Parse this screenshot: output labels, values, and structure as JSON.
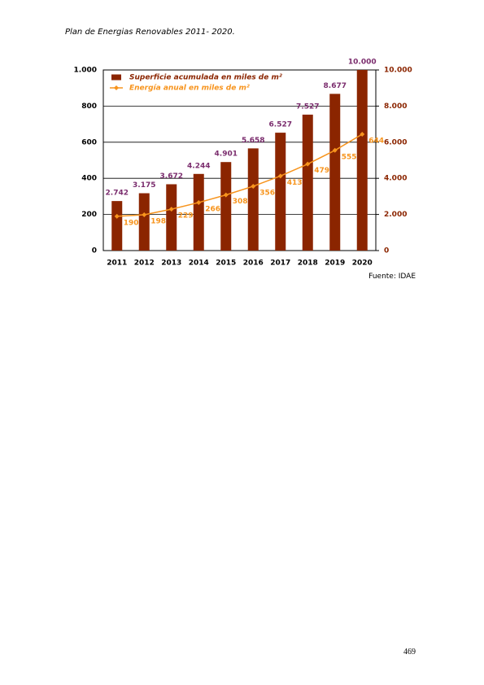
{
  "header": {
    "title": "Plan de Energias Renovables 2011- 2020."
  },
  "chart_data": {
    "type": "bar-line",
    "categories": [
      "2011",
      "2012",
      "2013",
      "2014",
      "2015",
      "2016",
      "2017",
      "2018",
      "2019",
      "2020"
    ],
    "series": [
      {
        "name": "Superficie acumulada en miles de m²",
        "color": "#8b2500",
        "type": "bar",
        "axis": "y2",
        "values": [
          2742,
          3175,
          3672,
          4244,
          4901,
          5658,
          6527,
          7527,
          8677,
          10000
        ],
        "value_labels": [
          "2.742",
          "3.175",
          "3.672",
          "4.244",
          "4.901",
          "5.658",
          "6.527",
          "7.527",
          "8.677",
          "10.000"
        ],
        "label_color": "#7b2d6e"
      },
      {
        "name": "Energía anual en miles de m²",
        "color": "#f7941d",
        "type": "line",
        "values": [
          190,
          198,
          229,
          266,
          308,
          356,
          413,
          479,
          555,
          644
        ]
      }
    ],
    "ylim": [
      0,
      1000
    ],
    "yticks": [
      0,
      200,
      400,
      600,
      800,
      {
        "value": 1000,
        "label": "1.000"
      }
    ],
    "y2lim": [
      0,
      10000
    ],
    "y2ticks": [
      0,
      {
        "value": 2000,
        "label": "2.000"
      },
      {
        "value": 4000,
        "label": "4.000"
      },
      {
        "value": 6000,
        "label": "6.000"
      },
      {
        "value": 8000,
        "label": "8.000"
      },
      {
        "value": 10000,
        "label": "10.000"
      }
    ],
    "y2_color": "#8b2500",
    "grid": true
  },
  "source": "Fuente: IDAE",
  "page_number": "469"
}
